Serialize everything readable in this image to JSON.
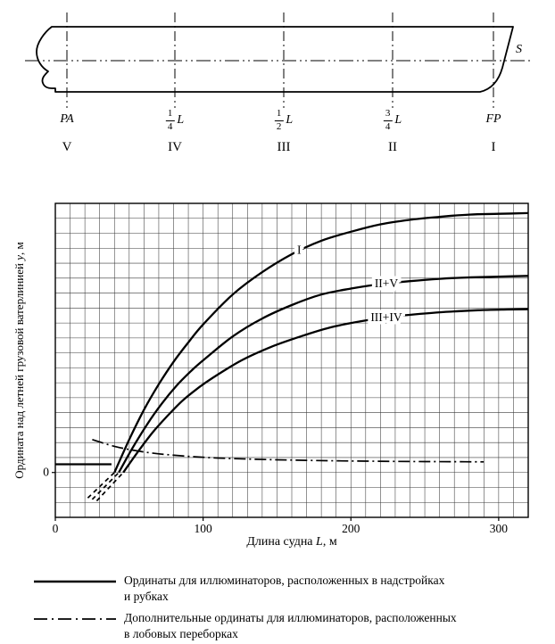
{
  "ship": {
    "s_label": "S",
    "stations": [
      {
        "label": "PA",
        "numeral": "V"
      },
      {
        "frac_num": "1",
        "frac_den": "4",
        "frac_suffix": "L",
        "numeral": "IV"
      },
      {
        "frac_num": "1",
        "frac_den": "2",
        "frac_suffix": "L",
        "numeral": "III"
      },
      {
        "frac_num": "3",
        "frac_den": "4",
        "frac_suffix": "L",
        "numeral": "II"
      },
      {
        "label": "FP",
        "numeral": "I"
      }
    ]
  },
  "chart_data": {
    "type": "line",
    "xlabel_prefix": "Длина судна ",
    "xlabel_var": "L",
    "xlabel_suffix": ", м",
    "ylabel_prefix": "Ордината над летней грузовой ватерлинией ",
    "ylabel_var": "y",
    "ylabel_suffix": ", м",
    "xlim": [
      0,
      320
    ],
    "ylim": [
      -3,
      18
    ],
    "x_grid_step": 10,
    "y_grid_step": 1,
    "grid": true,
    "x_ticks": [
      {
        "value": 0,
        "label": "0"
      },
      {
        "value": 100,
        "label": "100"
      },
      {
        "value": 200,
        "label": "200"
      },
      {
        "value": 300,
        "label": "300"
      }
    ],
    "y_ticks": [
      {
        "value": 0,
        "label": "0"
      }
    ],
    "series": [
      {
        "name": "I",
        "style": "solid",
        "label": "I",
        "label_at": [
          165,
          14.9
        ],
        "points": [
          [
            40,
            0
          ],
          [
            50,
            2.2
          ],
          [
            60,
            4.2
          ],
          [
            70,
            5.9
          ],
          [
            80,
            7.4
          ],
          [
            90,
            8.7
          ],
          [
            100,
            9.9
          ],
          [
            120,
            11.9
          ],
          [
            140,
            13.4
          ],
          [
            160,
            14.6
          ],
          [
            180,
            15.5
          ],
          [
            200,
            16.1
          ],
          [
            220,
            16.6
          ],
          [
            240,
            16.9
          ],
          [
            260,
            17.1
          ],
          [
            280,
            17.25
          ],
          [
            300,
            17.3
          ],
          [
            320,
            17.35
          ]
        ],
        "tail": [
          [
            22,
            -1.7
          ],
          [
            31,
            -0.85
          ],
          [
            40,
            0
          ]
        ]
      },
      {
        "name": "II+V",
        "style": "solid",
        "label": "II+V",
        "label_at": [
          224,
          12.65
        ],
        "points": [
          [
            43,
            0
          ],
          [
            52,
            1.6
          ],
          [
            62,
            3.2
          ],
          [
            72,
            4.6
          ],
          [
            82,
            5.8
          ],
          [
            92,
            6.8
          ],
          [
            100,
            7.5
          ],
          [
            120,
            9.1
          ],
          [
            140,
            10.3
          ],
          [
            160,
            11.2
          ],
          [
            180,
            11.9
          ],
          [
            200,
            12.3
          ],
          [
            220,
            12.6
          ],
          [
            240,
            12.8
          ],
          [
            260,
            12.95
          ],
          [
            280,
            13.05
          ],
          [
            300,
            13.1
          ],
          [
            320,
            13.15
          ]
        ],
        "tail": [
          [
            25,
            -1.8
          ],
          [
            34,
            -0.9
          ],
          [
            43,
            0
          ]
        ]
      },
      {
        "name": "III+IV",
        "style": "solid",
        "label": "III+IV",
        "label_at": [
          224,
          10.4
        ],
        "points": [
          [
            46,
            0
          ],
          [
            56,
            1.4
          ],
          [
            66,
            2.7
          ],
          [
            76,
            3.8
          ],
          [
            86,
            4.8
          ],
          [
            96,
            5.6
          ],
          [
            106,
            6.3
          ],
          [
            126,
            7.5
          ],
          [
            146,
            8.4
          ],
          [
            166,
            9.1
          ],
          [
            186,
            9.7
          ],
          [
            206,
            10.1
          ],
          [
            226,
            10.4
          ],
          [
            246,
            10.6
          ],
          [
            266,
            10.75
          ],
          [
            286,
            10.85
          ],
          [
            306,
            10.9
          ],
          [
            320,
            10.92
          ]
        ],
        "tail": [
          [
            28,
            -1.9
          ],
          [
            37,
            -0.95
          ],
          [
            46,
            0
          ]
        ]
      },
      {
        "name": "min-ordinate",
        "style": "solid",
        "points": [
          [
            0,
            0.55
          ],
          [
            38,
            0.55
          ]
        ]
      },
      {
        "name": "additional",
        "style": "dashdot",
        "points": [
          [
            25,
            2.2
          ],
          [
            40,
            1.75
          ],
          [
            55,
            1.45
          ],
          [
            70,
            1.25
          ],
          [
            90,
            1.08
          ],
          [
            110,
            0.97
          ],
          [
            130,
            0.9
          ],
          [
            150,
            0.85
          ],
          [
            170,
            0.81
          ],
          [
            190,
            0.78
          ],
          [
            210,
            0.76
          ],
          [
            230,
            0.74
          ],
          [
            250,
            0.73
          ],
          [
            270,
            0.72
          ],
          [
            290,
            0.71
          ]
        ]
      }
    ],
    "legend": [
      {
        "style": "solid",
        "text": "Ординаты для иллюминаторов, расположенных в надстройках\nи рубках"
      },
      {
        "style": "dashdot",
        "text": "Дополнительные ординаты для иллюминаторов, расположенных\nв лобовых переборках"
      }
    ]
  }
}
